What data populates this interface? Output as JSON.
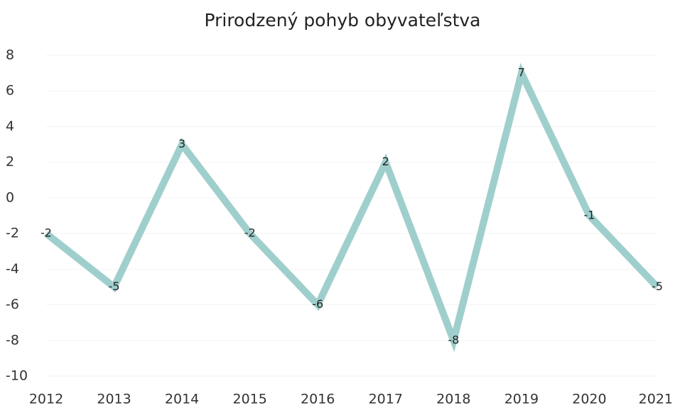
{
  "chart_data": {
    "type": "line",
    "title": "Prirodzený pohyb obyvateľstva",
    "categories": [
      "2012",
      "2013",
      "2014",
      "2015",
      "2016",
      "2017",
      "2018",
      "2019",
      "2020",
      "2021"
    ],
    "series": [
      {
        "name": "Prirodzený pohyb",
        "color": "#9fcfcc",
        "values": [
          -2,
          -5,
          3,
          -2,
          -6,
          2,
          -8,
          7,
          -1,
          -5
        ]
      }
    ],
    "ylim": [
      -10,
      8
    ],
    "yticks": [
      -10,
      -8,
      -6,
      -4,
      -2,
      0,
      2,
      4,
      6,
      8
    ],
    "grid": true
  }
}
